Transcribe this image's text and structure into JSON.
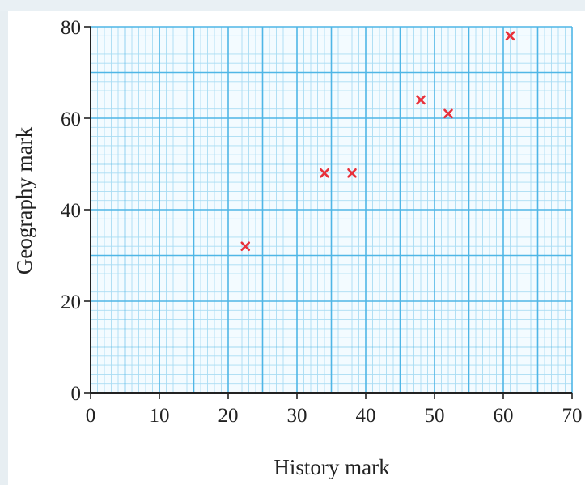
{
  "chart_data": {
    "type": "scatter",
    "xlabel": "History mark",
    "ylabel": "Geography mark",
    "xlim": [
      0,
      70
    ],
    "ylim": [
      0,
      80
    ],
    "xticks": [
      0,
      10,
      20,
      30,
      40,
      50,
      60,
      70
    ],
    "yticks": [
      0,
      20,
      40,
      60,
      80
    ],
    "x_tick_labels": [
      "0",
      "10",
      "20",
      "30",
      "40",
      "50",
      "60",
      "70"
    ],
    "y_tick_labels": [
      "0",
      "20",
      "40",
      "60",
      "80"
    ],
    "grid": true,
    "points": [
      {
        "x": 22.5,
        "y": 32
      },
      {
        "x": 34,
        "y": 48
      },
      {
        "x": 38,
        "y": 48
      },
      {
        "x": 48,
        "y": 64
      },
      {
        "x": 52,
        "y": 61
      },
      {
        "x": 61,
        "y": 78
      }
    ],
    "colors": {
      "grid_major": "#4fb6e6",
      "grid_minor": "#a9dcf3",
      "marker": "#e8303a",
      "axis": "#222222"
    }
  }
}
